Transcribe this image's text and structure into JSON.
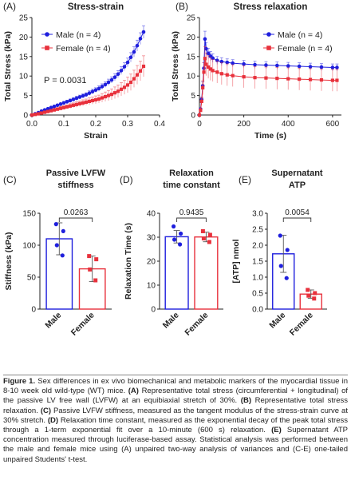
{
  "chart_data": [
    {
      "panel": "(A)",
      "type": "scatter",
      "title": "Stress-strain",
      "xlabel": "Strain",
      "ylabel": "Total Stress (kPa)",
      "xlim": [
        0,
        0.4
      ],
      "ylim": [
        0,
        25
      ],
      "xticks": [
        "0.0",
        "0.1",
        "0.2",
        "0.3",
        "0.4"
      ],
      "yticks": [
        "0",
        "5",
        "10",
        "15",
        "20",
        "25"
      ],
      "annotation": "P = 0.0031",
      "legend_position": "top-left",
      "series": [
        {
          "name": "Male (n = 4)",
          "color": "#1f1fdd",
          "marker": "circle",
          "x": [
            0.0,
            0.01,
            0.02,
            0.03,
            0.04,
            0.05,
            0.06,
            0.07,
            0.08,
            0.09,
            0.1,
            0.11,
            0.12,
            0.13,
            0.14,
            0.15,
            0.16,
            0.17,
            0.18,
            0.19,
            0.2,
            0.21,
            0.22,
            0.23,
            0.24,
            0.25,
            0.26,
            0.27,
            0.28,
            0.29,
            0.3,
            0.31,
            0.32,
            0.33,
            0.34,
            0.35
          ],
          "y": [
            0.0,
            0.3,
            0.6,
            1.0,
            1.3,
            1.6,
            1.9,
            2.2,
            2.5,
            2.8,
            3.1,
            3.4,
            3.7,
            4.0,
            4.3,
            4.6,
            4.9,
            5.2,
            5.6,
            6.0,
            6.4,
            6.8,
            7.3,
            7.8,
            8.4,
            9.0,
            9.7,
            10.5,
            11.4,
            12.4,
            13.5,
            14.8,
            16.2,
            17.8,
            19.6,
            21.3
          ],
          "err": [
            0,
            0.1,
            0.1,
            0.2,
            0.2,
            0.2,
            0.3,
            0.3,
            0.3,
            0.3,
            0.4,
            0.4,
            0.4,
            0.4,
            0.5,
            0.5,
            0.5,
            0.5,
            0.6,
            0.6,
            0.6,
            0.7,
            0.7,
            0.7,
            0.8,
            0.8,
            0.9,
            0.9,
            1.0,
            1.0,
            1.1,
            1.2,
            1.3,
            1.4,
            1.5,
            1.6
          ]
        },
        {
          "name": "Female (n = 4)",
          "color": "#e8313c",
          "marker": "square",
          "x": [
            0.0,
            0.01,
            0.02,
            0.03,
            0.04,
            0.05,
            0.06,
            0.07,
            0.08,
            0.09,
            0.1,
            0.11,
            0.12,
            0.13,
            0.14,
            0.15,
            0.16,
            0.17,
            0.18,
            0.19,
            0.2,
            0.21,
            0.22,
            0.23,
            0.24,
            0.25,
            0.26,
            0.27,
            0.28,
            0.29,
            0.3,
            0.31,
            0.32,
            0.33,
            0.34,
            0.35
          ],
          "y": [
            0.0,
            0.15,
            0.3,
            0.5,
            0.7,
            0.9,
            1.1,
            1.3,
            1.5,
            1.7,
            1.9,
            2.1,
            2.3,
            2.5,
            2.7,
            2.9,
            3.1,
            3.3,
            3.5,
            3.7,
            3.9,
            4.1,
            4.4,
            4.7,
            5.0,
            5.3,
            5.7,
            6.1,
            6.6,
            7.1,
            7.7,
            8.4,
            9.3,
            10.3,
            11.3,
            12.5
          ],
          "err": [
            0,
            0.1,
            0.1,
            0.2,
            0.2,
            0.3,
            0.3,
            0.4,
            0.4,
            0.5,
            0.5,
            0.5,
            0.6,
            0.6,
            0.7,
            0.7,
            0.8,
            0.8,
            0.9,
            0.9,
            1.0,
            1.0,
            1.1,
            1.2,
            1.3,
            1.4,
            1.5,
            1.6,
            1.7,
            1.8,
            2.0,
            2.1,
            2.2,
            2.4,
            2.5,
            2.7
          ]
        }
      ]
    },
    {
      "panel": "(B)",
      "type": "scatter",
      "title": "Stress relaxation",
      "xlabel": "Time (s)",
      "ylabel": "Total Stress (kPa)",
      "xlim": [
        0,
        640
      ],
      "ylim": [
        0,
        25
      ],
      "xticks": [
        "0",
        "200",
        "400",
        "600"
      ],
      "yticks": [
        "0",
        "5",
        "10",
        "15",
        "20",
        "25"
      ],
      "legend_position": "top-right",
      "series": [
        {
          "name": "Male (n = 4)",
          "color": "#1f1fdd",
          "marker": "circle",
          "x": [
            0,
            5,
            10,
            15,
            20,
            25,
            30,
            40,
            50,
            60,
            80,
            100,
            125,
            150,
            200,
            250,
            300,
            350,
            400,
            450,
            500,
            550,
            600,
            620
          ],
          "y": [
            0,
            1.5,
            4.0,
            7.5,
            12.0,
            19.5,
            17.0,
            15.8,
            15.1,
            14.6,
            14.0,
            13.7,
            13.5,
            13.3,
            13.1,
            12.9,
            12.8,
            12.7,
            12.6,
            12.5,
            12.4,
            12.3,
            12.2,
            12.2
          ],
          "err": [
            0,
            0.3,
            0.6,
            1.0,
            1.4,
            2.0,
            1.6,
            1.3,
            1.2,
            1.1,
            1.0,
            1.0,
            0.9,
            0.9,
            0.9,
            0.9,
            0.9,
            0.9,
            0.9,
            0.9,
            0.9,
            0.9,
            0.9,
            0.9
          ]
        },
        {
          "name": "Female (n = 4)",
          "color": "#e8313c",
          "marker": "square",
          "x": [
            0,
            5,
            10,
            15,
            20,
            25,
            30,
            40,
            50,
            60,
            80,
            100,
            125,
            150,
            200,
            250,
            300,
            350,
            400,
            450,
            500,
            550,
            600,
            620
          ],
          "y": [
            0,
            1.2,
            3.5,
            7.0,
            11.0,
            14.5,
            13.0,
            12.3,
            11.8,
            11.4,
            11.0,
            10.6,
            10.3,
            10.1,
            9.8,
            9.6,
            9.5,
            9.4,
            9.3,
            9.2,
            9.1,
            9.0,
            8.9,
            8.9
          ],
          "err": [
            0,
            0.5,
            1.0,
            1.8,
            2.4,
            3.0,
            2.9,
            2.9,
            2.9,
            2.8,
            2.8,
            2.8,
            2.8,
            2.8,
            2.8,
            2.8,
            2.8,
            2.8,
            2.8,
            2.8,
            2.8,
            2.8,
            2.8,
            2.8
          ]
        }
      ]
    },
    {
      "panel": "(C)",
      "type": "bar",
      "title": "Passive LVFW stiffness",
      "title_lines": [
        "Passive LVFW",
        "stiffness"
      ],
      "ylabel": "Stiffness (kPa)",
      "categories": [
        "Male",
        "Female"
      ],
      "ylim": [
        0,
        150
      ],
      "yticks": [
        "0",
        "50",
        "100",
        "150"
      ],
      "values": [
        110,
        63
      ],
      "err": [
        25,
        20
      ],
      "points": [
        [
          133,
          122,
          100,
          84
        ],
        [
          83,
          78,
          62,
          45
        ]
      ],
      "pvalue": "0.0263"
    },
    {
      "panel": "(D)",
      "type": "bar",
      "title": "Relaxation time constant",
      "title_lines": [
        "Relaxation",
        "time constant"
      ],
      "ylabel": "Relaxation Time (s)",
      "categories": [
        "Male",
        "Female"
      ],
      "ylim": [
        0,
        40
      ],
      "yticks": [
        "0",
        "10",
        "20",
        "30",
        "40"
      ],
      "values": [
        30.2,
        30.1
      ],
      "err": [
        2.6,
        2.0
      ],
      "points": [
        [
          34.5,
          31.5,
          29.0,
          27.0
        ],
        [
          32.5,
          31.0,
          29.5,
          28.0
        ]
      ],
      "pvalue": "0.9435"
    },
    {
      "panel": "(E)",
      "type": "bar",
      "title": "Supernatant ATP",
      "title_lines": [
        "Supernatant",
        "ATP"
      ],
      "ylabel": "[ATP] nmol",
      "categories": [
        "Male",
        "Female"
      ],
      "ylim": [
        0,
        3.0
      ],
      "yticks": [
        "0.0",
        "0.5",
        "1.0",
        "1.5",
        "2.0",
        "2.5",
        "3.0"
      ],
      "values": [
        1.73,
        0.47
      ],
      "err": [
        0.58,
        0.13
      ],
      "points": [
        [
          2.3,
          1.85,
          1.35,
          0.97
        ],
        [
          0.6,
          0.5,
          0.42,
          0.33
        ]
      ],
      "pvalue": "0.0054"
    }
  ],
  "caption": {
    "label": "Figure 1.",
    "segments": [
      {
        "b": false,
        "t": " Sex differences in ex vivo biomechanical and metabolic markers of the myocardial tissue in 8-10 week old wild-type (WT) mice. "
      },
      {
        "b": true,
        "t": "(A)"
      },
      {
        "b": false,
        "t": " Representative total stress (circumferential + longitudinal) of the passive LV free wall (LVFW) at an equibiaxial stretch of 30%. "
      },
      {
        "b": true,
        "t": "(B)"
      },
      {
        "b": false,
        "t": " Representative total stress relaxation. "
      },
      {
        "b": true,
        "t": "(C)"
      },
      {
        "b": false,
        "t": " Passive LVFW stiffness, measured as the tangent modulus of the stress-strain curve at 30% stretch. "
      },
      {
        "b": true,
        "t": "(D)"
      },
      {
        "b": false,
        "t": " Relaxation time constant, measured as the exponential decay of the peak total stress through a 1-term exponential fit over a 10-minute (600 s) relaxation. "
      },
      {
        "b": true,
        "t": "(E)"
      },
      {
        "b": false,
        "t": " Supernatant ATP concentration measured through luciferase-based assay. Statistical analysis was performed between the male and female mice using (A) unpaired two-way analysis of variances and (C-E) one-tailed unpaired Students' t-test."
      }
    ]
  }
}
